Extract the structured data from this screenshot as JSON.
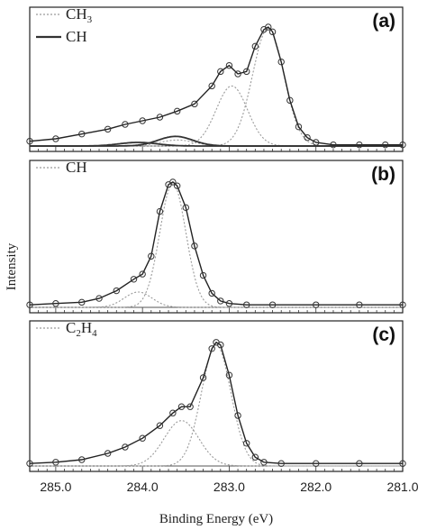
{
  "figure": {
    "ylabel": "Intensity",
    "xlabel": "Binding Energy (eV)",
    "x_ticks": [
      "285.0",
      "284.0",
      "283.0",
      "282.0",
      "281.0"
    ]
  },
  "chart_data": [
    {
      "type": "line",
      "panel_label": "(a)",
      "xlabel": "Binding Energy (eV)",
      "ylabel": "Intensity",
      "xlim": [
        285.3,
        281.0
      ],
      "ylim": [
        0,
        1.05
      ],
      "x_reversed": true,
      "grid": false,
      "legend_position": "top-left",
      "legend": [
        {
          "text": "CH",
          "sub": "3",
          "style": "dotted"
        },
        {
          "text": "CH",
          "sub": "",
          "style": "solid"
        }
      ],
      "components": [
        {
          "legend_index": 0,
          "style": "dotted",
          "center": 282.55,
          "amp": 0.98,
          "width": 0.18
        },
        {
          "legend_index": 0,
          "style": "dotted",
          "center": 282.97,
          "amp": 0.5,
          "width": 0.18
        },
        {
          "legend_index": 0,
          "style": "dotted",
          "center": 283.6,
          "amp": 0.05,
          "width": 0.2
        },
        {
          "legend_index": 1,
          "style": "solid",
          "center": 283.62,
          "amp": 0.08,
          "width": 0.2
        },
        {
          "legend_index": 1,
          "style": "solid",
          "center": 284.05,
          "amp": 0.03,
          "width": 0.22
        }
      ],
      "envelope_x": [
        285.3,
        285.0,
        284.7,
        284.4,
        284.2,
        284.0,
        283.8,
        283.6,
        283.4,
        283.2,
        283.1,
        283.0,
        282.9,
        282.8,
        282.7,
        282.6,
        282.55,
        282.5,
        282.4,
        282.3,
        282.2,
        282.1,
        282.0,
        281.8,
        281.5,
        281.2,
        281.0
      ],
      "envelope_y": [
        0.04,
        0.06,
        0.1,
        0.14,
        0.18,
        0.21,
        0.24,
        0.29,
        0.35,
        0.5,
        0.62,
        0.67,
        0.6,
        0.62,
        0.83,
        0.97,
        0.99,
        0.95,
        0.7,
        0.38,
        0.16,
        0.07,
        0.03,
        0.01,
        0.01,
        0.01,
        0.01
      ]
    },
    {
      "type": "line",
      "panel_label": "(b)",
      "xlabel": "Binding Energy (eV)",
      "ylabel": "Intensity",
      "xlim": [
        285.3,
        281.0
      ],
      "ylim": [
        0,
        1.05
      ],
      "x_reversed": true,
      "grid": false,
      "legend_position": "top-left",
      "legend": [
        {
          "text": "CH",
          "sub": "",
          "style": "dotted"
        }
      ],
      "components": [
        {
          "legend_index": 0,
          "style": "dotted",
          "center": 283.65,
          "amp": 0.97,
          "width": 0.15
        },
        {
          "legend_index": 0,
          "style": "dotted",
          "center": 284.05,
          "amp": 0.12,
          "width": 0.16
        }
      ],
      "envelope_x": [
        285.3,
        285.0,
        284.7,
        284.5,
        284.3,
        284.1,
        284.0,
        283.9,
        283.8,
        283.7,
        283.65,
        283.6,
        283.5,
        283.4,
        283.3,
        283.2,
        283.1,
        283.0,
        282.8,
        282.5,
        282.0,
        281.5,
        281.0
      ],
      "envelope_y": [
        0.02,
        0.03,
        0.04,
        0.07,
        0.13,
        0.22,
        0.26,
        0.4,
        0.75,
        0.96,
        0.98,
        0.95,
        0.78,
        0.48,
        0.25,
        0.11,
        0.05,
        0.03,
        0.02,
        0.02,
        0.02,
        0.02,
        0.02
      ]
    },
    {
      "type": "line",
      "panel_label": "(c)",
      "xlabel": "Binding Energy (eV)",
      "ylabel": "Intensity",
      "xlim": [
        285.3,
        281.0
      ],
      "ylim": [
        0,
        1.05
      ],
      "x_reversed": true,
      "grid": false,
      "legend_position": "top-left",
      "legend": [
        {
          "text": "C",
          "sub": "2",
          "text2": "H",
          "sub2": "4",
          "style": "dotted"
        }
      ],
      "components": [
        {
          "legend_index": 0,
          "style": "dotted",
          "center": 283.15,
          "amp": 0.96,
          "width": 0.17
        },
        {
          "legend_index": 0,
          "style": "dotted",
          "center": 283.55,
          "amp": 0.36,
          "width": 0.2
        }
      ],
      "envelope_x": [
        285.3,
        285.0,
        284.7,
        284.4,
        284.2,
        284.0,
        283.8,
        283.65,
        283.55,
        283.45,
        283.3,
        283.2,
        283.15,
        283.1,
        283.0,
        282.9,
        282.8,
        282.7,
        282.6,
        282.4,
        282.0,
        281.5,
        281.0
      ],
      "envelope_y": [
        0.02,
        0.03,
        0.05,
        0.1,
        0.15,
        0.22,
        0.32,
        0.42,
        0.47,
        0.47,
        0.7,
        0.93,
        0.98,
        0.96,
        0.72,
        0.4,
        0.18,
        0.07,
        0.03,
        0.02,
        0.02,
        0.02,
        0.02
      ]
    }
  ]
}
